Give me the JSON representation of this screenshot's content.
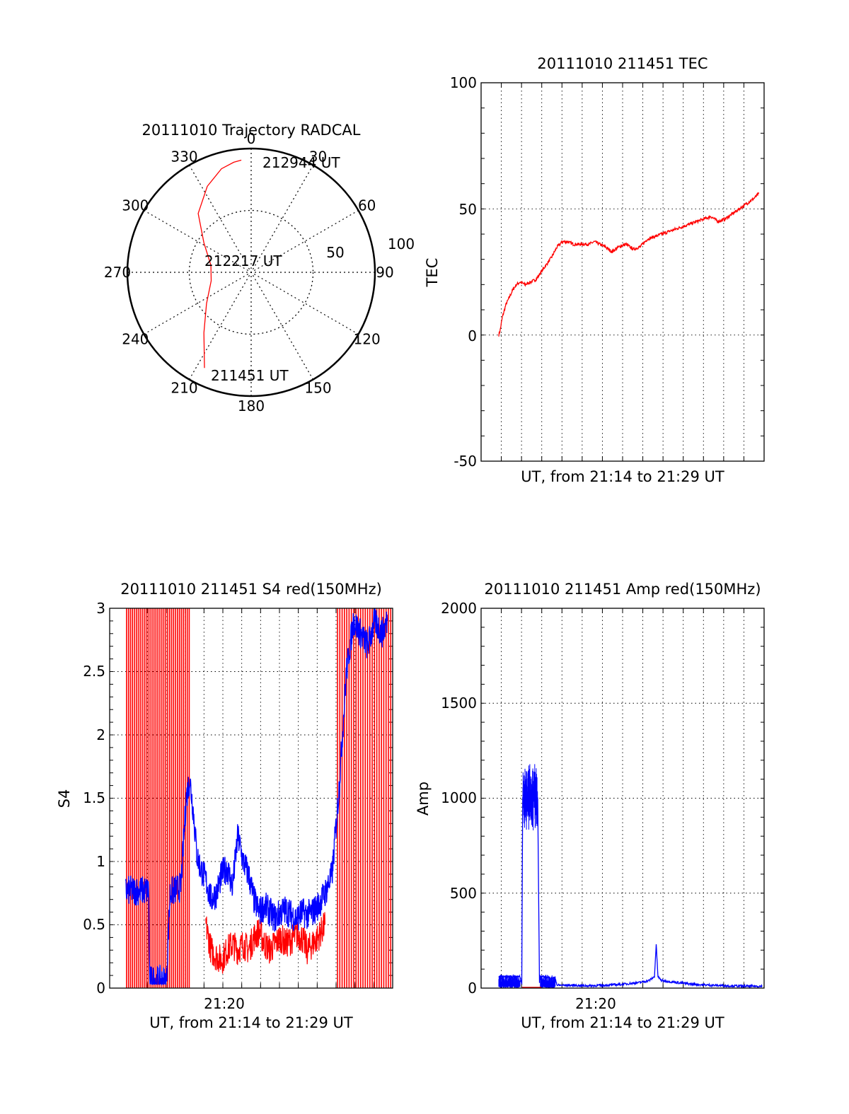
{
  "chart_data": [
    {
      "type": "polar",
      "title": "20111010 Trajectory RADCAL",
      "angle_labels": [
        "0",
        "30",
        "60",
        "90",
        "120",
        "150",
        "180",
        "210",
        "240",
        "270",
        "300",
        "330"
      ],
      "radial_labels": [
        "50",
        "100"
      ],
      "rlim": [
        0,
        100
      ],
      "grid": true,
      "series": [
        {
          "color": "#ff0000",
          "points": [
            {
              "az": 206,
              "r": 86
            },
            {
              "az": 218,
              "r": 62
            },
            {
              "az": 235,
              "r": 44
            },
            {
              "az": 258,
              "r": 33
            },
            {
              "az": 280,
              "r": 33
            },
            {
              "az": 302,
              "r": 45
            },
            {
              "az": 318,
              "r": 64
            },
            {
              "az": 333,
              "r": 78
            },
            {
              "az": 344,
              "r": 87
            },
            {
              "az": 351,
              "r": 90
            },
            {
              "az": 355,
              "r": 91
            }
          ]
        }
      ],
      "annotations": [
        "212944 UT",
        "212217 UT",
        "211451 UT"
      ]
    },
    {
      "type": "line",
      "title": "20111010 211451 TEC",
      "xlabel": "UT, from 21:14 to 21:29 UT",
      "ylabel": "TEC",
      "xlim": [
        0,
        15
      ],
      "ylim": [
        -50,
        100
      ],
      "yticks": [
        "100",
        "50",
        "0",
        "-50"
      ],
      "grid": true,
      "series": [
        {
          "color": "#ff0000",
          "x": [
            0.0,
            0.08,
            0.2,
            0.4,
            0.6,
            0.8,
            1.0,
            1.2,
            1.5,
            1.8,
            2.1,
            2.4,
            2.7,
            3.0,
            3.3,
            3.6,
            3.9,
            4.2,
            4.5,
            4.8,
            5.1,
            5.4,
            5.7,
            6.0,
            6.4,
            6.8,
            7.2,
            7.6,
            8.0,
            8.4,
            8.8,
            9.2,
            9.6,
            10.0,
            10.4,
            10.8,
            11.2,
            11.6,
            12.0,
            12.4,
            12.8,
            13.2,
            13.6,
            14.0,
            14.4,
            14.7
          ],
          "y": [
            0,
            2,
            7,
            12,
            15,
            18,
            20,
            21,
            20,
            21,
            22,
            25,
            28,
            31,
            35,
            37,
            37,
            36,
            36,
            36,
            36,
            37,
            36,
            35,
            33,
            35,
            36,
            34,
            35,
            38,
            39,
            40,
            41,
            42,
            43,
            44,
            45,
            46,
            47,
            45,
            46,
            48,
            50,
            52,
            54,
            56
          ]
        }
      ]
    },
    {
      "type": "line",
      "title": "20111010 211451 S4 red(150MHz)",
      "xlabel": "UT, from 21:14 to 21:29 UT",
      "ylabel": "S4",
      "xtick_labels": [
        "21:20"
      ],
      "xlim": [
        0,
        15
      ],
      "ylim": [
        0,
        3
      ],
      "yticks": [
        "3",
        "2.5",
        "2",
        "1.5",
        "1",
        "0.5",
        "0"
      ],
      "grid": true,
      "series": [
        {
          "color": "#0000ff",
          "x": [
            0.0,
            1.3,
            1.32,
            1.35,
            2.3,
            2.35,
            2.5,
            3.1,
            3.4,
            3.6,
            3.8,
            4.0,
            4.2,
            4.5,
            4.8,
            5.1,
            5.4,
            5.7,
            6.0,
            6.3,
            6.6,
            6.9,
            7.2,
            7.5,
            7.8,
            8.1,
            8.4,
            8.7,
            9.0,
            9.3,
            9.6,
            9.9,
            10.2,
            10.5,
            10.8,
            11.2,
            11.6,
            12.0,
            12.4,
            12.8,
            13.2,
            13.6,
            14.0,
            14.4,
            14.7
          ],
          "y": [
            0.77,
            0.77,
            0.3,
            0.06,
            0.06,
            0.3,
            0.75,
            0.8,
            1.5,
            1.65,
            1.4,
            1.05,
            0.95,
            0.85,
            0.7,
            0.75,
            0.9,
            0.95,
            0.8,
            1.2,
            1.0,
            0.9,
            0.7,
            0.6,
            0.65,
            0.6,
            0.55,
            0.6,
            0.62,
            0.58,
            0.55,
            0.6,
            0.58,
            0.6,
            0.65,
            0.75,
            0.9,
            1.6,
            2.5,
            2.9,
            2.8,
            2.7,
            2.9,
            2.8,
            2.9
          ]
        },
        {
          "color": "#ff0000",
          "x": [
            4.5,
            4.8,
            5.1,
            5.4,
            5.7,
            6.0,
            6.3,
            6.6,
            6.9,
            7.2,
            7.5,
            7.8,
            8.1,
            8.4,
            8.7,
            9.0,
            9.3,
            9.6,
            9.9,
            10.2,
            10.5,
            10.8,
            11.2
          ],
          "y": [
            0.5,
            0.3,
            0.25,
            0.22,
            0.3,
            0.35,
            0.3,
            0.35,
            0.3,
            0.4,
            0.45,
            0.35,
            0.3,
            0.35,
            0.4,
            0.35,
            0.38,
            0.42,
            0.4,
            0.3,
            0.35,
            0.4,
            0.5
          ]
        }
      ]
    },
    {
      "type": "line",
      "title": "20111010 211451 Amp red(150MHz)",
      "xlabel": "UT, from 21:14 to 21:29 UT",
      "ylabel": "Amp",
      "xtick_labels": [
        "21:20"
      ],
      "xlim": [
        0,
        15
      ],
      "ylim": [
        0,
        2000
      ],
      "yticks": [
        "2000",
        "1500",
        "1000",
        "500",
        "0"
      ],
      "grid": true,
      "series": [
        {
          "color": "#0000ff",
          "x": [
            0.0,
            1.2,
            1.3,
            1.35,
            2.2,
            2.3,
            2.35,
            3.2,
            3.3,
            4.0,
            5.0,
            6.0,
            7.0,
            8.0,
            8.5,
            8.8,
            8.9,
            9.0,
            9.2,
            10.0,
            11.0,
            12.0,
            13.0,
            14.0,
            14.9
          ],
          "y": [
            60,
            60,
            20,
            1000,
            1000,
            30,
            60,
            50,
            15,
            15,
            12,
            15,
            20,
            30,
            40,
            60,
            230,
            60,
            40,
            30,
            20,
            15,
            12,
            10,
            10
          ]
        }
      ]
    }
  ]
}
